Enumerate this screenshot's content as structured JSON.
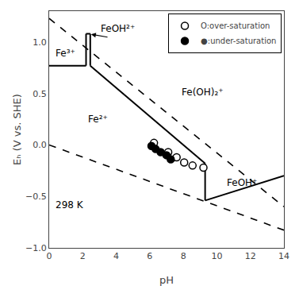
{
  "chart_data": {
    "type": "scatter",
    "xlabel": "pH",
    "ylabel": "Eₕ (V vs. SHE)",
    "xlim": [
      0,
      14
    ],
    "ylim": [
      -1.0,
      1.3
    ],
    "xticks": [
      0,
      2,
      4,
      6,
      8,
      10,
      12,
      14
    ],
    "yticks": [
      {
        "value": -1.0,
        "label": "−1.0"
      },
      {
        "value": -0.5,
        "label": "−0.5"
      },
      {
        "value": 0.0,
        "label": "0.0"
      },
      0.5,
      {
        "value": 1.0,
        "label": "1.0"
      }
    ],
    "grid": false,
    "legend": "upper right",
    "series": [
      {
        "type": "line",
        "line_style": "solid",
        "color": "black",
        "x": [
          0,
          2.2
        ],
        "values": [
          0.77,
          0.77
        ]
      },
      {
        "type": "line",
        "line_style": "solid",
        "color": "black",
        "x": [
          2.2,
          2.2
        ],
        "values": [
          0.77,
          1.08
        ]
      },
      {
        "type": "line",
        "line_style": "solid",
        "color": "black",
        "x": [
          2.2,
          2.45
        ],
        "values": [
          1.08,
          1.08
        ]
      },
      {
        "type": "line",
        "line_style": "solid",
        "color": "black",
        "x": [
          2.45,
          2.45
        ],
        "values": [
          1.08,
          0.77
        ]
      },
      {
        "type": "line",
        "line_style": "solid",
        "color": "black",
        "x": [
          2.45,
          9.3
        ],
        "values": [
          0.77,
          -0.18
        ]
      },
      {
        "type": "line",
        "line_style": "solid",
        "color": "black",
        "x": [
          9.3,
          9.3
        ],
        "values": [
          -0.18,
          -0.54
        ]
      },
      {
        "type": "line",
        "line_style": "solid",
        "color": "black",
        "x": [
          9.3,
          14
        ],
        "values": [
          -0.54,
          -0.3
        ]
      },
      {
        "type": "line",
        "line_style": "dashed",
        "color": "black",
        "x": [
          0,
          14
        ],
        "values": [
          1.229,
          -0.6
        ]
      },
      {
        "type": "line",
        "line_style": "dashed",
        "color": "black",
        "x": [
          0,
          14
        ],
        "values": [
          0.0,
          -0.828
        ]
      },
      {
        "type": "scatter",
        "name": "O:over-saturation",
        "marker": "open_circle",
        "color": "black",
        "x": [
          6.25,
          7.1,
          7.6,
          8.05,
          8.55,
          9.2
        ],
        "values": [
          0.02,
          -0.07,
          -0.12,
          -0.17,
          -0.2,
          -0.22
        ]
      },
      {
        "type": "scatter",
        "name": "●:under-saturation",
        "marker": "circle",
        "color": "black",
        "x": [
          6.1,
          6.35,
          6.65,
          7.0,
          7.25
        ],
        "values": [
          -0.01,
          -0.04,
          -0.07,
          -0.1,
          -0.14
        ]
      }
    ],
    "arrows": [
      {
        "x": [
          3.55,
          2.5
        ],
        "y": [
          1.045,
          1.075
        ]
      }
    ],
    "annotations": [
      {
        "text": "Fe³⁺",
        "x": 0.3,
        "y": 0.82
      },
      {
        "text": "FeOH²⁺",
        "x": 3.0,
        "y": 1.06
      },
      {
        "text": "Fe²⁺",
        "x": 2.2,
        "y": 0.18
      },
      {
        "text": "Fe(OH)₂⁺",
        "x": 7.8,
        "y": 0.44
      },
      {
        "text": "FeOH⁺",
        "x": 10.5,
        "y": -0.44
      },
      {
        "text": "298 K",
        "x": 0.3,
        "y": -0.65
      }
    ]
  }
}
